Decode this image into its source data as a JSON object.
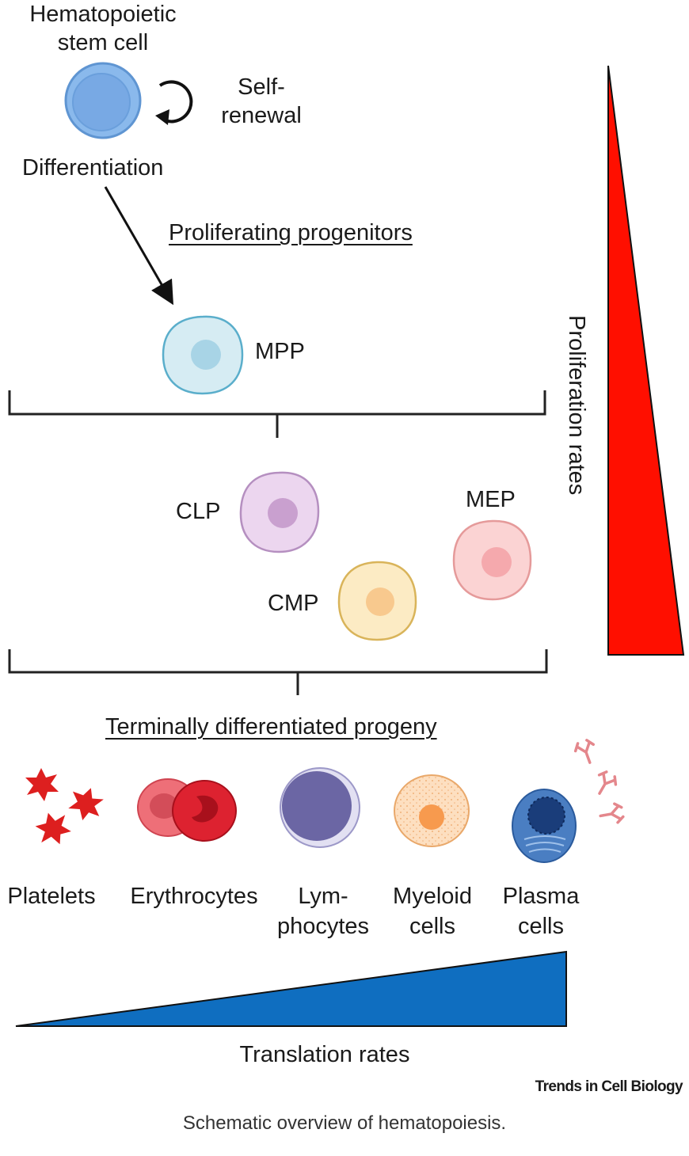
{
  "stem_cell": {
    "title_line1": "Hematopoietic",
    "title_line2": "stem cell",
    "self_renewal_line1": "Self-",
    "self_renewal_line2": "renewal"
  },
  "differentiation_label": "Differentiation",
  "progenitors": {
    "heading": "Proliferating progenitors",
    "cells": [
      {
        "label": "MPP",
        "color": "#d6ecf3",
        "outline": "#5aaecb"
      },
      {
        "label": "CLP",
        "color": "#ecd6ef",
        "outline": "#b58fc0"
      },
      {
        "label": "CMP",
        "color": "#fcebc4",
        "outline": "#d9b45a"
      },
      {
        "label": "MEP",
        "color": "#fbd3d3",
        "outline": "#e59a9a"
      }
    ]
  },
  "progeny": {
    "heading": "Terminally differentiated progeny",
    "items": [
      {
        "line1": "Platelets",
        "line2": "",
        "icon": "platelets-icon"
      },
      {
        "line1": "Erythrocytes",
        "line2": "",
        "icon": "erythrocytes-icon"
      },
      {
        "line1": "Lym-",
        "line2": "phocytes",
        "icon": "lymphocyte-icon"
      },
      {
        "line1": "Myeloid",
        "line2": "cells",
        "icon": "myeloid-cell-icon"
      },
      {
        "line1": "Plasma",
        "line2": "cells",
        "icon": "plasma-cell-icon"
      }
    ]
  },
  "proliferation_rates_label": "Proliferation rates",
  "translation_rates_label": "Translation rates",
  "colors": {
    "proliferation": "#ff0f00",
    "translation": "#0f6ec0",
    "stem_cell": "#8ab9ec"
  },
  "brand": "Trends in Cell Biology",
  "caption": "Schematic overview of hematopoiesis."
}
